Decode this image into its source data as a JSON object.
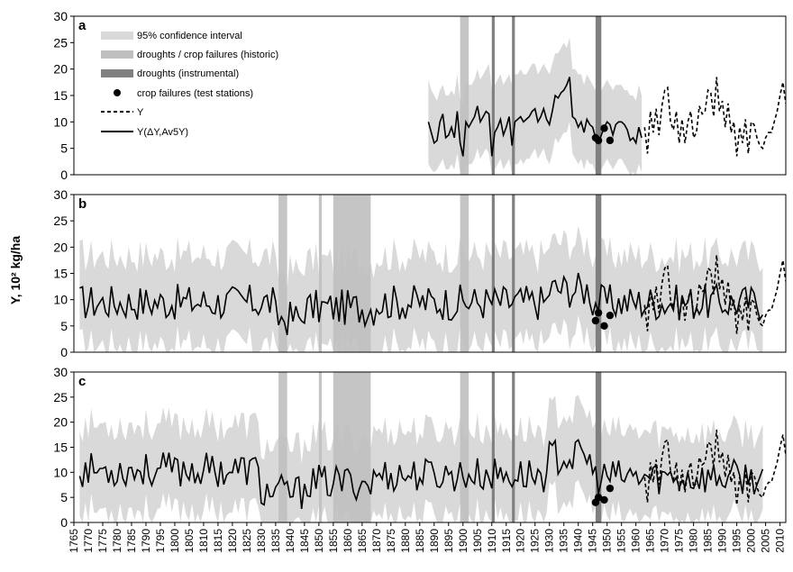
{
  "chart_data": {
    "type": "line",
    "ylabel": "Y, 10² kg/ha",
    "ylim": [
      0,
      30
    ],
    "yticks": [
      0,
      5,
      10,
      15,
      20,
      25,
      30
    ],
    "xlim": [
      1765,
      2012
    ],
    "xticks": [
      1765,
      1770,
      1775,
      1780,
      1785,
      1790,
      1795,
      1800,
      1805,
      1810,
      1815,
      1820,
      1825,
      1830,
      1835,
      1840,
      1845,
      1850,
      1855,
      1860,
      1865,
      1870,
      1875,
      1880,
      1885,
      1890,
      1895,
      1900,
      1905,
      1910,
      1915,
      1920,
      1925,
      1930,
      1935,
      1940,
      1945,
      1950,
      1955,
      1960,
      1965,
      1970,
      1975,
      1980,
      1985,
      1990,
      1995,
      2000,
      2005,
      2010
    ],
    "legend": {
      "ci": "95% confidence interval",
      "hist": "droughts / crop failures (historic)",
      "instr": "droughts (instrumental)",
      "crop": "crop failures (test stations)",
      "y": "Y",
      "recon": "Y(ΔY,Av5Y)"
    },
    "colors": {
      "ci": "#d9d9d9",
      "hist": "#bfbfbf",
      "instr": "#808080",
      "line": "#000000"
    },
    "instrumental_droughts": [
      [
        1910,
        1911
      ],
      [
        1917,
        1918
      ],
      [
        1946,
        1948
      ]
    ],
    "crop_failures": [
      {
        "x": 1946,
        "y_a": 7.0,
        "y_b": 6.0,
        "y_c": 4.0
      },
      {
        "x": 1947,
        "y_a": 6.5,
        "y_b": 7.5,
        "y_c": 5.0
      },
      {
        "x": 1949,
        "y_a": 8.8,
        "y_b": 5.0,
        "y_c": 4.5
      },
      {
        "x": 1951,
        "y_a": 6.5,
        "y_b": 7.0,
        "y_c": 6.8
      }
    ],
    "observed_Y": {
      "x": [
        1963,
        1964,
        1965,
        1966,
        1967,
        1968,
        1969,
        1970,
        1971,
        1972,
        1973,
        1974,
        1975,
        1976,
        1977,
        1978,
        1979,
        1980,
        1981,
        1982,
        1983,
        1984,
        1985,
        1986,
        1987,
        1988,
        1989,
        1990,
        1991,
        1992,
        1993,
        1994,
        1995,
        1996,
        1997,
        1998,
        1999,
        2000,
        2001,
        2002,
        2003,
        2004,
        2005,
        2006,
        2007,
        2008,
        2009,
        2010,
        2011,
        2012
      ],
      "y": [
        9.0,
        4.0,
        12.0,
        8.0,
        12.5,
        7.5,
        13.0,
        16.0,
        16.5,
        10.0,
        8.5,
        12.0,
        6.0,
        10.5,
        6.0,
        10.0,
        12.0,
        7.0,
        8.0,
        13.0,
        11.5,
        12.0,
        16.0,
        15.5,
        11.0,
        18.5,
        12.0,
        14.0,
        9.0,
        13.5,
        8.0,
        10.0,
        3.5,
        9.0,
        6.0,
        10.5,
        4.0,
        10.0,
        9.5,
        7.0,
        5.5,
        5.0,
        7.0,
        8.0,
        8.0,
        10.0,
        12.0,
        15.0,
        17.5,
        13.5
      ]
    },
    "panels": [
      {
        "label": "a",
        "historic_droughts": [
          [
            1899,
            1902
          ]
        ],
        "recon": {
          "x": [
            1888,
            1889,
            1890,
            1891,
            1892,
            1893,
            1894,
            1895,
            1896,
            1897,
            1898,
            1899,
            1900,
            1901,
            1902,
            1903,
            1904,
            1905,
            1906,
            1907,
            1908,
            1909,
            1910,
            1911,
            1912,
            1913,
            1914,
            1915,
            1916,
            1917,
            1918,
            1919,
            1920,
            1921,
            1922,
            1923,
            1924,
            1925,
            1926,
            1927,
            1928,
            1929,
            1930,
            1931,
            1932,
            1933,
            1934,
            1935,
            1936,
            1937,
            1938,
            1939,
            1940,
            1941,
            1942,
            1943,
            1944,
            1945,
            1946,
            1947,
            1948,
            1949,
            1950,
            1951,
            1952,
            1953,
            1954,
            1955,
            1956,
            1957,
            1958,
            1959,
            1960,
            1961,
            1962
          ],
          "y": [
            10.0,
            8.0,
            6.0,
            6.5,
            10.0,
            11.5,
            7.0,
            7.5,
            9.0,
            7.0,
            12.0,
            6.0,
            3.5,
            10.0,
            9.0,
            10.0,
            11.0,
            13.0,
            10.0,
            11.0,
            12.0,
            11.5,
            3.5,
            8.0,
            9.0,
            10.5,
            7.5,
            9.0,
            11.0,
            5.5,
            10.0,
            10.5,
            11.0,
            10.0,
            10.5,
            11.0,
            12.0,
            12.5,
            10.0,
            11.0,
            12.5,
            10.5,
            9.5,
            12.0,
            15.0,
            14.5,
            15.5,
            16.0,
            17.0,
            18.5,
            11.0,
            10.5,
            9.0,
            10.0,
            8.0,
            10.5,
            9.5,
            9.0,
            7.0,
            6.0,
            7.5,
            9.0,
            10.0,
            9.5,
            7.5,
            9.5,
            10.0,
            10.0,
            9.5,
            8.5,
            6.5,
            7.0,
            6.0,
            9.0,
            7.0
          ]
        },
        "ci_upper": [
          18,
          16,
          15,
          14,
          16,
          17,
          15,
          15,
          16,
          15,
          19,
          14,
          13,
          18,
          17,
          17,
          18,
          20,
          18,
          19,
          20,
          21,
          16,
          17,
          18,
          19,
          17,
          18,
          19,
          17,
          19,
          19,
          20,
          19,
          19,
          20,
          21,
          21,
          19,
          20,
          21,
          20,
          19,
          21,
          23,
          23,
          24,
          25,
          24,
          26,
          20,
          20,
          19,
          19,
          17,
          19,
          18,
          17,
          16,
          15,
          16,
          17,
          18,
          17,
          16,
          17,
          17,
          17,
          16,
          16,
          15,
          15,
          14,
          17,
          15
        ],
        "ci_lower": [
          2,
          1,
          0.5,
          1,
          2,
          3,
          1,
          1,
          2,
          1,
          4,
          0.5,
          0,
          2,
          2,
          2,
          3,
          5,
          3,
          4,
          5,
          4,
          0,
          1,
          2,
          3,
          1,
          2,
          3,
          0,
          2,
          2,
          3,
          2,
          3,
          3,
          4,
          5,
          3,
          4,
          5,
          3,
          2,
          4,
          7,
          6,
          7,
          8,
          8,
          10,
          4,
          3,
          2,
          3,
          1,
          3,
          2,
          2,
          0.5,
          0,
          1,
          2,
          3,
          2,
          1,
          2,
          3,
          3,
          2,
          1,
          0,
          0.5,
          0,
          2,
          0.5
        ]
      },
      {
        "label": "b",
        "historic_droughts": [
          [
            1836,
            1839
          ],
          [
            1850,
            1851
          ],
          [
            1855,
            1868
          ],
          [
            1899,
            1902
          ]
        ]
      },
      {
        "label": "c",
        "historic_droughts": [
          [
            1836,
            1839
          ],
          [
            1850,
            1851
          ],
          [
            1855,
            1868
          ],
          [
            1899,
            1902
          ]
        ]
      }
    ]
  }
}
